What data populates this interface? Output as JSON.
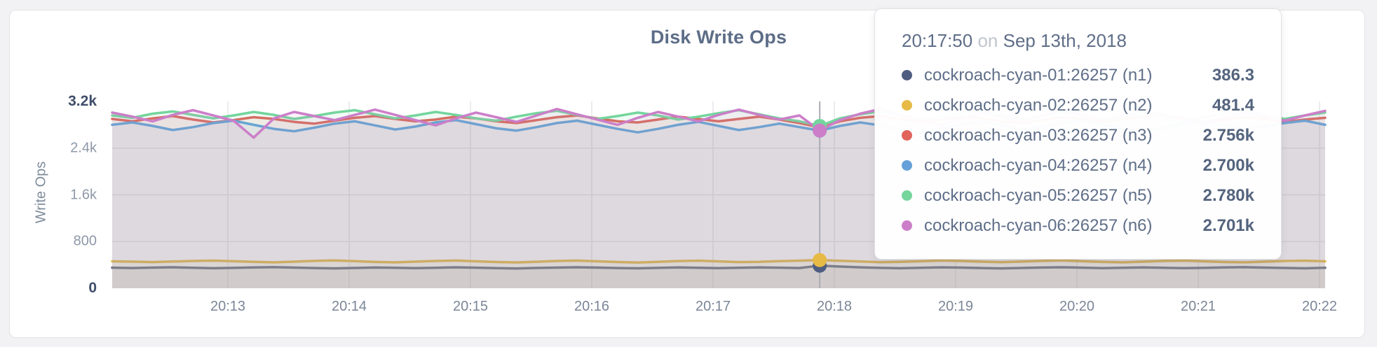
{
  "panel": {
    "title": "Disk Write Ops"
  },
  "chart_data": {
    "type": "area",
    "title": "Disk Write Ops",
    "xlabel": "",
    "ylabel": "Write Ops",
    "ylim": [
      0,
      3200
    ],
    "grid": true,
    "legend_position": "tooltip",
    "x_start": "20:12:00",
    "x_end": "20:22:00",
    "x_interval_seconds": 10,
    "x_ticks": [
      "20:13",
      "20:14",
      "20:15",
      "20:16",
      "20:17",
      "20:18",
      "20:19",
      "20:20",
      "20:21",
      "20:22"
    ],
    "y_ticks": [
      {
        "value": 0,
        "label": "0"
      },
      {
        "value": 800,
        "label": "800"
      },
      {
        "value": 1600,
        "label": "1.6k"
      },
      {
        "value": 2400,
        "label": "2.4k"
      },
      {
        "value": 3200,
        "label": "3.2k"
      }
    ],
    "series": [
      {
        "name": "cockroach-cyan-01:26257 (n1)",
        "color": "#5e6a84",
        "values": [
          352,
          346,
          354,
          359,
          350,
          343,
          349,
          356,
          361,
          353,
          346,
          340,
          348,
          355,
          350,
          344,
          351,
          358,
          352,
          345,
          339,
          347,
          354,
          360,
          353,
          346,
          341,
          349,
          356,
          351,
          344,
          350,
          357,
          352,
          346,
          386.3,
          372,
          358,
          349,
          343,
          351,
          358,
          353,
          346,
          340,
          348,
          355,
          360,
          352,
          345,
          350,
          357,
          351,
          344,
          349,
          356,
          361,
          354,
          347,
          342,
          350
        ]
      },
      {
        "name": "cockroach-cyan-02:26257 (n2)",
        "color": "#e6ba45",
        "values": [
          462,
          455,
          448,
          458,
          468,
          474,
          463,
          452,
          444,
          456,
          469,
          476,
          464,
          451,
          443,
          455,
          468,
          475,
          462,
          450,
          442,
          454,
          467,
          473,
          461,
          449,
          441,
          453,
          466,
          472,
          460,
          448,
          452,
          464,
          472,
          481.4,
          470,
          458,
          446,
          452,
          463,
          475,
          468,
          455,
          447,
          457,
          469,
          476,
          463,
          451,
          444,
          456,
          468,
          474,
          461,
          449,
          443,
          455,
          467,
          472,
          461
        ]
      },
      {
        "name": "cockroach-cyan-03:26257 (n3)",
        "color": "#e0635c",
        "values": [
          2900,
          2860,
          2910,
          2950,
          2890,
          2840,
          2880,
          2930,
          2900,
          2850,
          2820,
          2870,
          2920,
          2950,
          2900,
          2860,
          2890,
          2940,
          2910,
          2860,
          2830,
          2880,
          2930,
          2960,
          2910,
          2860,
          2840,
          2890,
          2940,
          2900,
          2860,
          2900,
          2940,
          2890,
          2830,
          2756,
          2860,
          2920,
          2950,
          2900,
          2850,
          2890,
          2940,
          2910,
          2860,
          2830,
          2880,
          2930,
          2900,
          2850,
          2890,
          2940,
          2960,
          2910,
          2860,
          2890,
          2930,
          2900,
          2850,
          2890,
          2920
        ]
      },
      {
        "name": "cockroach-cyan-04:26257 (n4)",
        "color": "#65a0d9",
        "values": [
          2800,
          2840,
          2780,
          2710,
          2760,
          2830,
          2870,
          2800,
          2730,
          2690,
          2750,
          2820,
          2860,
          2790,
          2720,
          2770,
          2840,
          2880,
          2810,
          2740,
          2700,
          2760,
          2830,
          2870,
          2800,
          2730,
          2670,
          2730,
          2800,
          2850,
          2780,
          2710,
          2760,
          2820,
          2760,
          2700,
          2780,
          2840,
          2790,
          2720,
          2660,
          2740,
          2810,
          2860,
          2790,
          2720,
          2760,
          2830,
          2880,
          2800,
          2730,
          2690,
          2750,
          2820,
          2860,
          2790,
          2720,
          2770,
          2830,
          2870,
          2800
        ]
      },
      {
        "name": "cockroach-cyan-05:26257 (n5)",
        "color": "#74d59d",
        "values": [
          2960,
          2920,
          2990,
          3030,
          2970,
          2910,
          2960,
          3020,
          2970,
          2900,
          2950,
          3010,
          3050,
          2980,
          2910,
          2960,
          3020,
          2970,
          2910,
          2870,
          2940,
          3000,
          3040,
          2970,
          2900,
          2950,
          3010,
          2960,
          2890,
          2940,
          3000,
          3050,
          2980,
          2910,
          2860,
          2780,
          2910,
          2980,
          3030,
          2960,
          2890,
          2940,
          3000,
          3040,
          2970,
          2900,
          2950,
          3010,
          2960,
          2890,
          2940,
          3000,
          2950,
          2880,
          2930,
          2990,
          3040,
          2970,
          2900,
          2960,
          3010
        ]
      },
      {
        "name": "cockroach-cyan-06:26257 (n6)",
        "color": "#cc7ec9",
        "values": [
          3010,
          2940,
          2860,
          2970,
          3050,
          2960,
          2870,
          2580,
          2910,
          3020,
          2950,
          2880,
          2970,
          3060,
          2970,
          2880,
          2790,
          2910,
          3010,
          2930,
          2850,
          2960,
          3070,
          2980,
          2890,
          2800,
          2920,
          3020,
          2940,
          2860,
          2970,
          3060,
          2970,
          2890,
          2960,
          2701,
          2880,
          2990,
          3070,
          2970,
          2880,
          2790,
          2910,
          3010,
          2930,
          2850,
          2960,
          3050,
          2960,
          2880,
          2970,
          3060,
          2970,
          2890,
          2800,
          2920,
          3010,
          2940,
          2870,
          2960,
          3040
        ]
      }
    ]
  },
  "tooltip": {
    "time": "20:17:50",
    "conjunction": "on",
    "date": "Sep 13th, 2018",
    "hover_index": 35,
    "rows": [
      {
        "name": "cockroach-cyan-01:26257 (n1)",
        "value": "386.3",
        "color": "#4e5d80"
      },
      {
        "name": "cockroach-cyan-02:26257 (n2)",
        "value": "481.4",
        "color": "#e6ba45"
      },
      {
        "name": "cockroach-cyan-03:26257 (n3)",
        "value": "2.756k",
        "color": "#e0635c"
      },
      {
        "name": "cockroach-cyan-04:26257 (n4)",
        "value": "2.700k",
        "color": "#65a0d9"
      },
      {
        "name": "cockroach-cyan-05:26257 (n5)",
        "value": "2.780k",
        "color": "#74d59d"
      },
      {
        "name": "cockroach-cyan-06:26257 (n6)",
        "value": "2.701k",
        "color": "#cc7ec9"
      }
    ]
  }
}
